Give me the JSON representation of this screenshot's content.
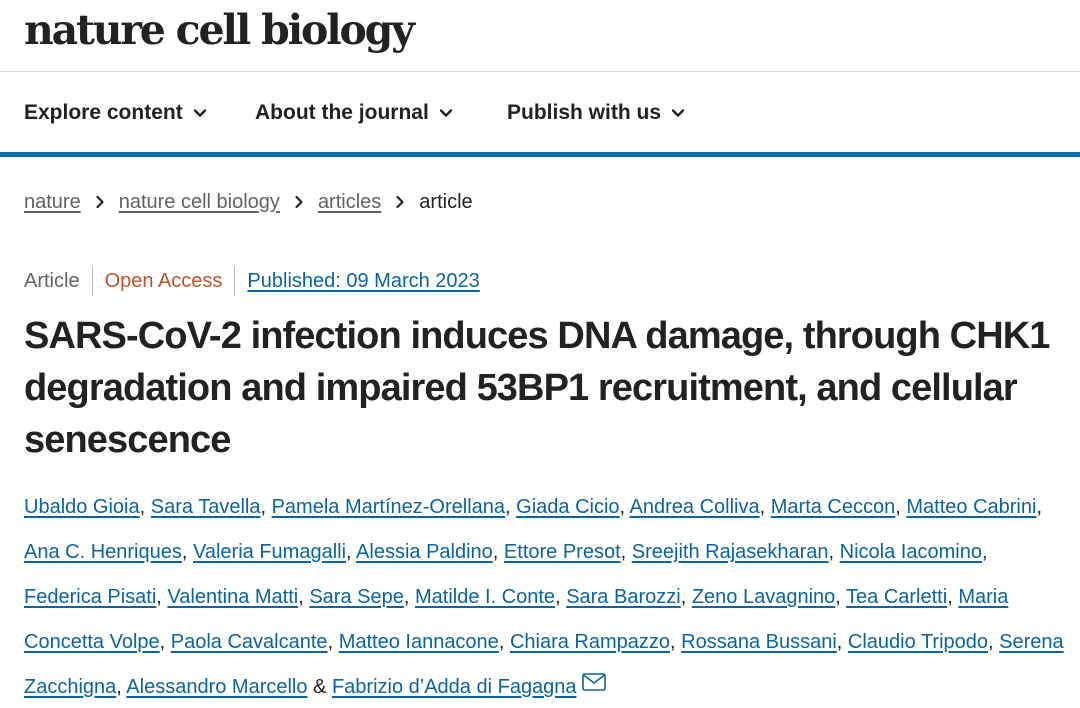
{
  "journal": {
    "name": "nature cell biology"
  },
  "nav": {
    "items": [
      {
        "label": "Explore content"
      },
      {
        "label": "About the journal"
      },
      {
        "label": "Publish with us"
      }
    ]
  },
  "breadcrumb": {
    "items": [
      "nature",
      "nature cell biology",
      "articles"
    ],
    "current": "article"
  },
  "article": {
    "type": "Article",
    "access": "Open Access",
    "published": "Published: 09 March 2023",
    "title": "SARS-CoV-2 infection induces DNA damage, through CHK1 degradation and impaired 53BP1 recruitment, and cellular senescence"
  },
  "authors": [
    "Ubaldo Gioia",
    "Sara Tavella",
    "Pamela Martínez-Orellana",
    "Giada Cicio",
    "Andrea Colliva",
    "Marta Ceccon",
    "Matteo Cabrini",
    "Ana C. Henriques",
    "Valeria Fumagalli",
    "Alessia Paldino",
    "Ettore Presot",
    "Sreejith Rajasekharan",
    "Nicola Iacomino",
    "Federica Pisati",
    "Valentina Matti",
    "Sara Sepe",
    "Matilde I. Conte",
    "Sara Barozzi",
    "Zeno Lavagnino",
    "Tea Carletti",
    "Maria Concetta Volpe",
    "Paola Cavalcante",
    "Matteo Iannacone",
    "Chiara Rampazzo",
    "Rossana Bussani",
    "Claudio Tripodo",
    "Serena Zacchigna",
    "Alessandro Marcello",
    "Fabrizio d’Adda di Fagagna"
  ],
  "colors": {
    "link": "#0b63a3",
    "open_access": "#b9532e",
    "accent_bar": "#0070a8",
    "muted": "#626262"
  },
  "icons": {
    "nav_chevron": "chevron-down-icon",
    "breadcrumb_separator": "chevron-right-icon",
    "corresponding_author": "mail-icon"
  }
}
